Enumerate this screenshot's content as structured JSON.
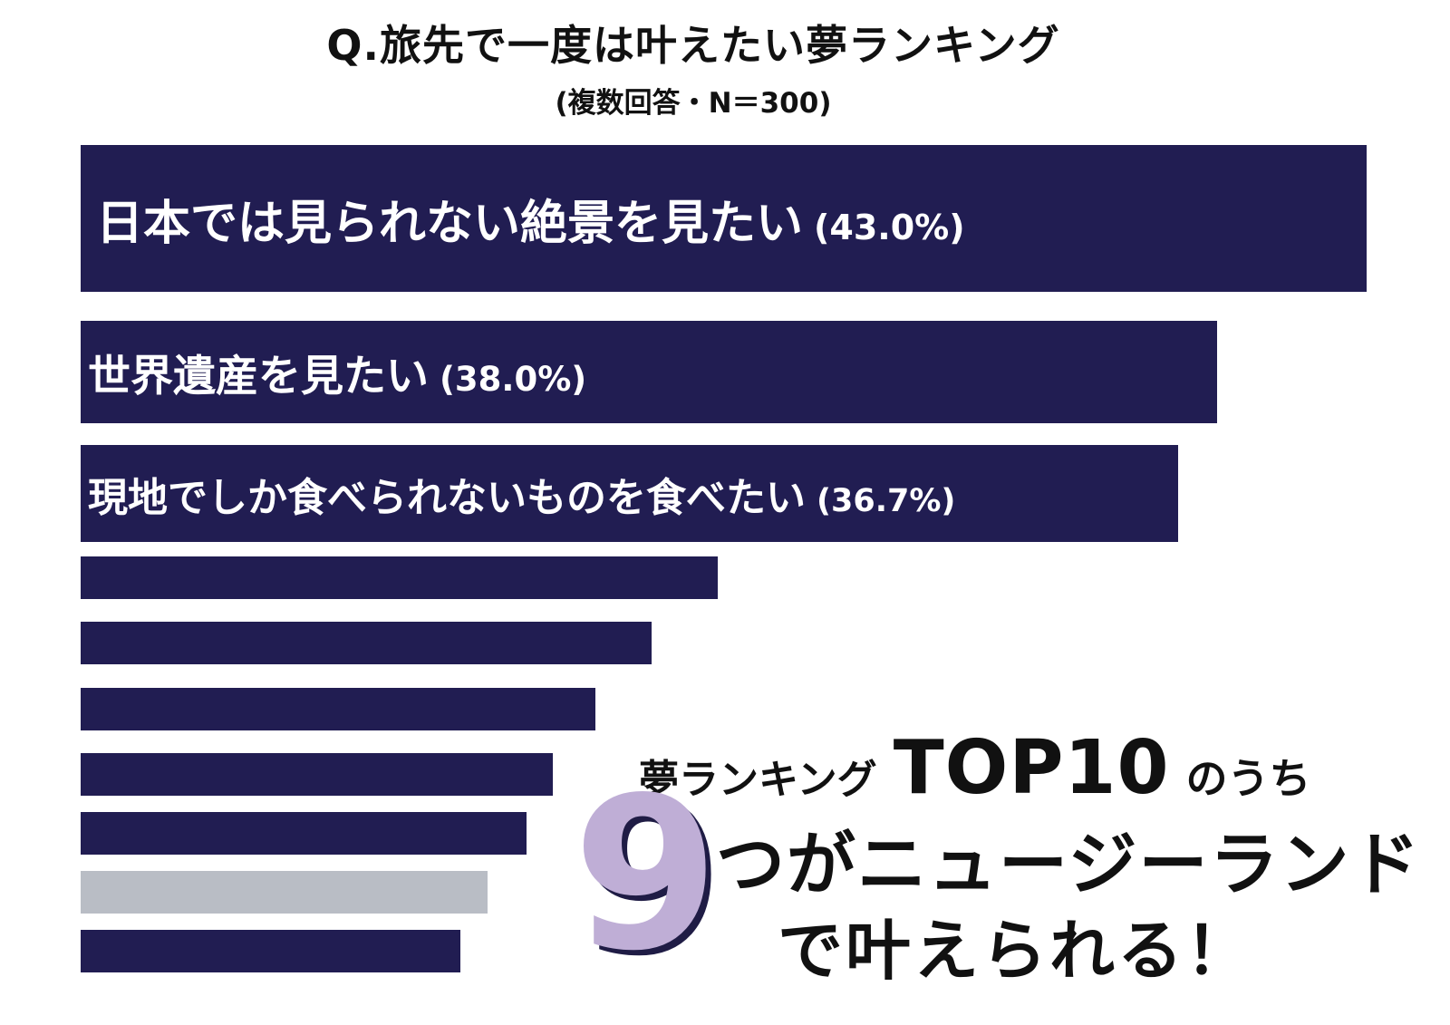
{
  "chart_data": {
    "type": "bar",
    "orientation": "horizontal",
    "title": "Q.旅先で一度は叶えたい夢ランキング",
    "subtitle": "(複数回答・N＝300)",
    "xlabel": "",
    "ylabel": "",
    "xlim": [
      0,
      43
    ],
    "grid": false,
    "colors": {
      "bar": "#211d52",
      "highlight": "#b9bdc5",
      "accent": "#bfaed6",
      "label": "#ffffff"
    },
    "bars": [
      {
        "rank": 1,
        "label": "日本では見られない絶景を見たい",
        "value_label": "(43.0%)",
        "value": 43.0
      },
      {
        "rank": 2,
        "label": "世界遺産を見たい",
        "value_label": "(38.0%)",
        "value": 38.0
      },
      {
        "rank": 3,
        "label": "現地でしか食べられないものを食べたい",
        "value_label": "(36.7%)",
        "value": 36.7
      },
      {
        "rank": 4,
        "label": "",
        "value_label": "",
        "value": 21.3
      },
      {
        "rank": 5,
        "label": "",
        "value_label": "",
        "value": 19.1
      },
      {
        "rank": 6,
        "label": "",
        "value_label": "",
        "value": 17.2
      },
      {
        "rank": 7,
        "label": "",
        "value_label": "",
        "value": 15.8
      },
      {
        "rank": 8,
        "label": "",
        "value_label": "",
        "value": 14.9
      },
      {
        "rank": 9,
        "label": "",
        "value_label": "",
        "value": 13.6,
        "highlight": true
      },
      {
        "rank": 10,
        "label": "",
        "value_label": "",
        "value": 12.7
      }
    ]
  },
  "annotation": {
    "line1_part1": "夢ランキング",
    "line1_part2": "TOP10",
    "line1_part3": "のうち",
    "big_number": "9",
    "line2": "つがニュージーランド",
    "line3": "で叶えられる！"
  }
}
